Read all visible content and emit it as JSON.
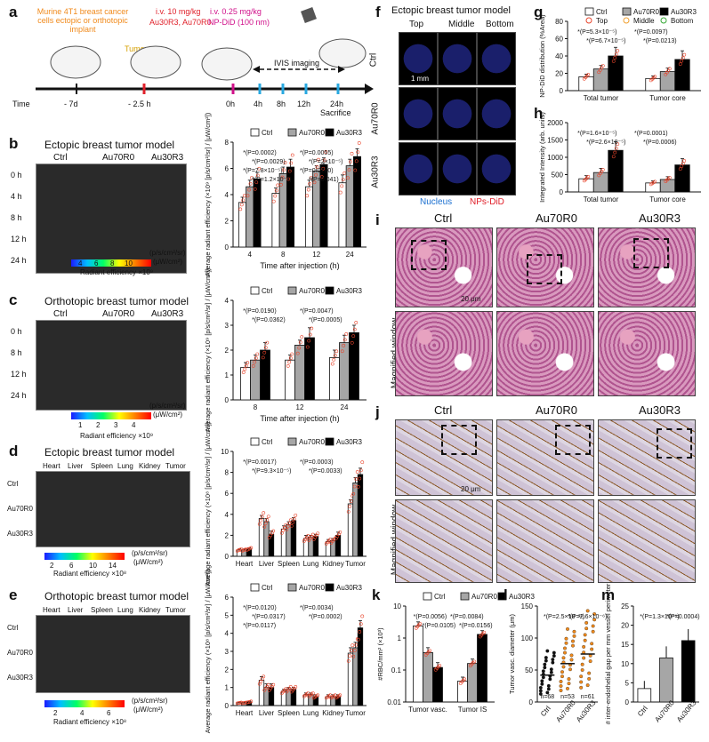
{
  "panels": {
    "a": {
      "label": "a",
      "implant_text": "Murine 4T1 breast cancer cells ectopic or orthotopic implant",
      "iv1_text": "i.v. 10 mg/kg",
      "iv1_agents": "Au30R3, Au70R0",
      "iv2_text": "i.v. 0.25 mg/kg",
      "iv2_agents": "NP-DiD (100 nm)",
      "tumor_label": "Tumor",
      "imaging_label": "IVIS imaging",
      "time_label": "Time",
      "timepoints": [
        "- 7d",
        "- 2.5 h",
        "0h",
        "4h",
        "8h",
        "12h",
        "24h"
      ],
      "sacrifice_label": "Sacrifice"
    },
    "b": {
      "label": "b",
      "title": "Ectopic breast tumor model",
      "cols": [
        "Ctrl",
        "Au70R0",
        "Au30R3"
      ],
      "rows": [
        "0 h",
        "4 h",
        "8 h",
        "12 h",
        "24 h"
      ],
      "colorbar_ticks": [
        "4",
        "6",
        "8",
        "10"
      ],
      "colorbar_unit1": "(p/s/cm²/sr)",
      "colorbar_unit2": "(μW/cm²)",
      "colorbar_label": "Radiant efficiency ×10⁹"
    },
    "c": {
      "label": "c",
      "title": "Orthotopic breast tumor model",
      "cols": [
        "Ctrl",
        "Au70R0",
        "Au30R3"
      ],
      "rows": [
        "0 h",
        "8 h",
        "12 h",
        "24 h"
      ],
      "colorbar_ticks": [
        "1",
        "2",
        "3",
        "4"
      ],
      "colorbar_unit1": "(p/s/cm²/sr)",
      "colorbar_unit2": "(μW/cm²)",
      "colorbar_label": "Radiant efficiency ×10⁹"
    },
    "d": {
      "label": "d",
      "title": "Ectopic breast tumor model",
      "organs": [
        "Heart",
        "Liver",
        "Spleen",
        "Lung",
        "Kidney",
        "Tumor"
      ],
      "rows": [
        "Ctrl",
        "Au70R0",
        "Au30R3"
      ],
      "colorbar_ticks": [
        "2",
        "6",
        "10",
        "14"
      ],
      "colorbar_unit1": "(p/s/cm²/sr)",
      "colorbar_unit2": "(μW/cm²)",
      "colorbar_label": "Radiant efficiency ×10⁸"
    },
    "e": {
      "label": "e",
      "title": "Orthotopic breast tumor model",
      "organs": [
        "Heart",
        "Liver",
        "Spleen",
        "Lung",
        "Kidney",
        "Tumor"
      ],
      "rows": [
        "Ctrl",
        "Au70R0",
        "Au30R3"
      ],
      "colorbar_ticks": [
        "2",
        "4",
        "6"
      ],
      "colorbar_unit1": "(p/s/cm²/sr)",
      "colorbar_unit2": "(μW/cm²)",
      "colorbar_label": "Radiant efficiency ×10⁸"
    },
    "f": {
      "label": "f",
      "title": "Ectopic breast tumor model",
      "cols": [
        "Top",
        "Middle",
        "Bottom"
      ],
      "rows": [
        "Ctrl",
        "Au70R0",
        "Au30R3"
      ],
      "scale_bar": "1 mm",
      "legend_nucleus": "Nucleus",
      "legend_nps": "NPs-DiD"
    },
    "g": {
      "label": "g"
    },
    "h": {
      "label": "h"
    },
    "i": {
      "label": "i",
      "cols": [
        "Ctrl",
        "Au70R0",
        "Au30R3"
      ],
      "scale_bar": "20 μm",
      "magnified_label": "Magnified window"
    },
    "j": {
      "label": "j",
      "cols": [
        "Ctrl",
        "Au70R0",
        "Au30R3"
      ],
      "scale_bar": "20 μm",
      "magnified_label": "Magnified window"
    },
    "k": {
      "label": "k"
    },
    "l": {
      "label": "l"
    },
    "m": {
      "label": "m"
    }
  },
  "colors": {
    "ctrl": "#ffffff",
    "au70": "#a6a6a6",
    "au30": "#000000",
    "point_top": "#e8452c",
    "point_middle": "#f0a030",
    "point_bottom": "#35a835",
    "text_blue": "#1a6fd0",
    "text_red": "#e0202a",
    "text_orange": "#f08a1c",
    "text_magenta": "#d0108a"
  },
  "chart_data": [
    {
      "id": "b-chart",
      "type": "bar",
      "ylabel": "Average radiant efficiency (×10⁹ [p/s/cm²/sr] / [μW/cm²])",
      "xlabel": "Time after injection (h)",
      "categories": [
        "4",
        "8",
        "12",
        "24"
      ],
      "ylim": [
        0,
        8
      ],
      "yticks": [
        "0",
        "2",
        "4",
        "6",
        "8"
      ],
      "legend": [
        "Ctrl",
        "Au70R0",
        "Au30R3"
      ],
      "series": [
        {
          "name": "Ctrl",
          "values": [
            3.4,
            4.1,
            4.6,
            4.9
          ],
          "err": [
            0.4,
            0.4,
            0.5,
            0.6
          ]
        },
        {
          "name": "Au70R0",
          "values": [
            4.6,
            5.6,
            5.8,
            6.2
          ],
          "err": [
            0.5,
            0.5,
            0.4,
            0.5
          ]
        },
        {
          "name": "Au30R3",
          "values": [
            5.2,
            6.1,
            6.3,
            6.9
          ],
          "err": [
            0.5,
            0.6,
            0.5,
            0.6
          ]
        }
      ],
      "annotations": [
        "*(P=0.0002)",
        "*(P=0.0055)",
        "*(P=0.0029)",
        "*(P=2×10⁻⁵)",
        "*(P=7.8×10⁻⁵)",
        "*(P=0.0180)",
        "*(P=1.2×10⁻⁴)",
        "*(P=0.041)"
      ]
    },
    {
      "id": "c-chart",
      "type": "bar",
      "ylabel": "Average radiant efficiency (×10⁹ [p/s/cm²/sr] / [μW/cm²])",
      "xlabel": "Time after injection (h)",
      "categories": [
        "8",
        "12",
        "24"
      ],
      "ylim": [
        0,
        4
      ],
      "yticks": [
        "0",
        "1",
        "2",
        "3",
        "4"
      ],
      "legend": [
        "Ctrl",
        "Au70R0",
        "Au30R3"
      ],
      "series": [
        {
          "name": "Ctrl",
          "values": [
            1.3,
            1.6,
            1.7
          ],
          "err": [
            0.2,
            0.2,
            0.3
          ]
        },
        {
          "name": "Au70R0",
          "values": [
            1.6,
            2.2,
            2.3
          ],
          "err": [
            0.2,
            0.2,
            0.3
          ]
        },
        {
          "name": "Au30R3",
          "values": [
            2.0,
            2.5,
            2.7
          ],
          "err": [
            0.3,
            0.4,
            0.3
          ]
        }
      ],
      "annotations": [
        "*(P=0.0190)",
        "*(P=0.0047)",
        "*(P=0.0362)",
        "*(P=0.0005)"
      ]
    },
    {
      "id": "d-chart",
      "type": "bar",
      "ylabel": "Average radiant efficiency (×10⁸ [p/s/cm²/sr] / [μW/cm²])",
      "categories": [
        "Heart",
        "Liver",
        "Spleen",
        "Lung",
        "Kidney",
        "Tumor"
      ],
      "ylim": [
        0,
        10
      ],
      "yticks": [
        "0",
        "2",
        "4",
        "6",
        "8",
        "10"
      ],
      "legend": [
        "Ctrl",
        "Au70R0",
        "Au30R3"
      ],
      "series": [
        {
          "name": "Ctrl",
          "values": [
            0.6,
            3.6,
            2.6,
            1.7,
            1.4,
            5.0
          ],
          "err": [
            0.1,
            0.3,
            0.3,
            0.3,
            0.2,
            0.4
          ]
        },
        {
          "name": "Au70R0",
          "values": [
            0.6,
            3.3,
            3.0,
            1.8,
            1.5,
            7.0
          ],
          "err": [
            0.1,
            0.3,
            0.3,
            0.2,
            0.2,
            0.5
          ]
        },
        {
          "name": "Au30R3",
          "values": [
            0.7,
            2.1,
            3.4,
            1.9,
            2.0,
            7.8
          ],
          "err": [
            0.1,
            0.3,
            0.3,
            0.2,
            0.3,
            0.6
          ]
        }
      ],
      "annotations": [
        "*(P=0.0017)",
        "*(P=0.0003)",
        "*(P=9.3×10⁻⁵)",
        "*(P=0.0033)"
      ]
    },
    {
      "id": "e-chart",
      "type": "bar",
      "ylabel": "Average radiant efficiency (×10⁸ [p/s/cm²/sr] / [μW/cm²])",
      "categories": [
        "Heart",
        "Liver",
        "Spleen",
        "Lung",
        "Kidney",
        "Tumor"
      ],
      "ylim": [
        0,
        6
      ],
      "yticks": [
        "0",
        "1",
        "2",
        "3",
        "4",
        "5",
        "6"
      ],
      "legend": [
        "Ctrl",
        "Au70R0",
        "Au30R3"
      ],
      "series": [
        {
          "name": "Ctrl",
          "values": [
            0.15,
            1.4,
            0.8,
            0.6,
            0.5,
            2.9
          ],
          "err": [
            0.05,
            0.2,
            0.1,
            0.1,
            0.1,
            0.3
          ]
        },
        {
          "name": "Au70R0",
          "values": [
            0.15,
            1.0,
            0.9,
            0.6,
            0.5,
            3.2
          ],
          "err": [
            0.05,
            0.2,
            0.1,
            0.1,
            0.1,
            0.3
          ]
        },
        {
          "name": "Au30R3",
          "values": [
            0.2,
            1.0,
            0.9,
            0.5,
            0.5,
            4.3
          ],
          "err": [
            0.05,
            0.2,
            0.1,
            0.1,
            0.1,
            0.4
          ]
        }
      ],
      "annotations": [
        "*(P=0.0120)",
        "*(P=0.0034)",
        "*(P=0.0317)",
        "*(P=0.0002)",
        "*(P=0.0117)"
      ]
    },
    {
      "id": "g-chart",
      "type": "bar",
      "ylabel": "NP-DiD distribution (%Area)",
      "categories": [
        "Total tumor",
        "Tumor core"
      ],
      "ylim": [
        0,
        80
      ],
      "yticks": [
        "0",
        "20",
        "40",
        "60",
        "80"
      ],
      "legend": [
        "Ctrl",
        "Au70R0",
        "Au30R3"
      ],
      "point_legend": [
        "Top",
        "Middle",
        "Bottom"
      ],
      "series": [
        {
          "name": "Ctrl",
          "values": [
            16,
            14
          ],
          "err": [
            3,
            3
          ]
        },
        {
          "name": "Au70R0",
          "values": [
            25,
            22
          ],
          "err": [
            4,
            4
          ]
        },
        {
          "name": "Au30R3",
          "values": [
            40,
            36
          ],
          "err": [
            10,
            10
          ]
        }
      ],
      "annotations": [
        "*(P=5.3×10⁻⁵)",
        "*(P=0.0097)",
        "*(P=6.7×10⁻⁵)",
        "*(P=0.0213)"
      ]
    },
    {
      "id": "h-chart",
      "type": "bar",
      "ylabel": "Integrated Intensity (arb. units)",
      "categories": [
        "Total tumor",
        "Tumor core"
      ],
      "ylim": [
        0,
        2000
      ],
      "yticks": [
        "0",
        "500",
        "1000",
        "1500",
        "2000"
      ],
      "series": [
        {
          "name": "Ctrl",
          "values": [
            380,
            260
          ],
          "err": [
            90,
            60
          ]
        },
        {
          "name": "Au70R0",
          "values": [
            560,
            360
          ],
          "err": [
            120,
            80
          ]
        },
        {
          "name": "Au30R3",
          "values": [
            1200,
            780
          ],
          "err": [
            250,
            180
          ]
        }
      ],
      "annotations": [
        "*(P=1.6×10⁻⁵)",
        "*(P=0.0001)",
        "*(P=2.6×10⁻⁵)",
        "*(P=0.0006)"
      ]
    },
    {
      "id": "k-chart",
      "type": "bar",
      "ylabel": "#RBC/mm² (×10³)",
      "categories": [
        "Tumor vasc.",
        "Tumor IS"
      ],
      "ylim": [
        0.01,
        10
      ],
      "yscale": "log",
      "yticks": [
        "0.01",
        "0.1",
        "1",
        "10"
      ],
      "legend": [
        "Ctrl",
        "Au70R0",
        "Au30R3"
      ],
      "series": [
        {
          "name": "Ctrl",
          "values": [
            2.4,
            0.045
          ],
          "err": [
            0.8,
            0.015
          ]
        },
        {
          "name": "Au70R0",
          "values": [
            0.35,
            0.16
          ],
          "err": [
            0.15,
            0.06
          ]
        },
        {
          "name": "Au30R3",
          "values": [
            0.12,
            1.3
          ],
          "err": [
            0.05,
            0.4
          ]
        }
      ],
      "annotations": [
        "*(P=0.0056)",
        "*(P=0.0084)",
        "*(P=0.0105)",
        "*(P=0.0156)"
      ]
    },
    {
      "id": "l-chart",
      "type": "scatter",
      "ylabel": "Tumor vasc. diameter (μm)",
      "categories": [
        "Ctrl",
        "Au70R0",
        "Au30R3"
      ],
      "ylim": [
        0,
        150
      ],
      "yticks": [
        "0",
        "50",
        "100",
        "150"
      ],
      "means": [
        42,
        60,
        75
      ],
      "n": [
        "n=68",
        "n=53",
        "n=61"
      ],
      "annotations": [
        "*(P=2.5×10⁻¹¹)",
        "*(P=2.6×10⁻⁶)"
      ]
    },
    {
      "id": "m-chart",
      "type": "bar",
      "ylabel": "# inter-endothelial gap per mm vessel perimeter",
      "categories": [
        "Ctrl",
        "Au70R0",
        "Au30R3"
      ],
      "ylim": [
        0,
        25
      ],
      "yticks": [
        "0",
        "5",
        "10",
        "15",
        "20",
        "25"
      ],
      "values": [
        3.5,
        11.5,
        16
      ],
      "err": [
        2,
        3,
        3
      ],
      "annotations": [
        "*(P=1.3×10⁻⁶)",
        "*(P=0.0004)"
      ]
    }
  ]
}
